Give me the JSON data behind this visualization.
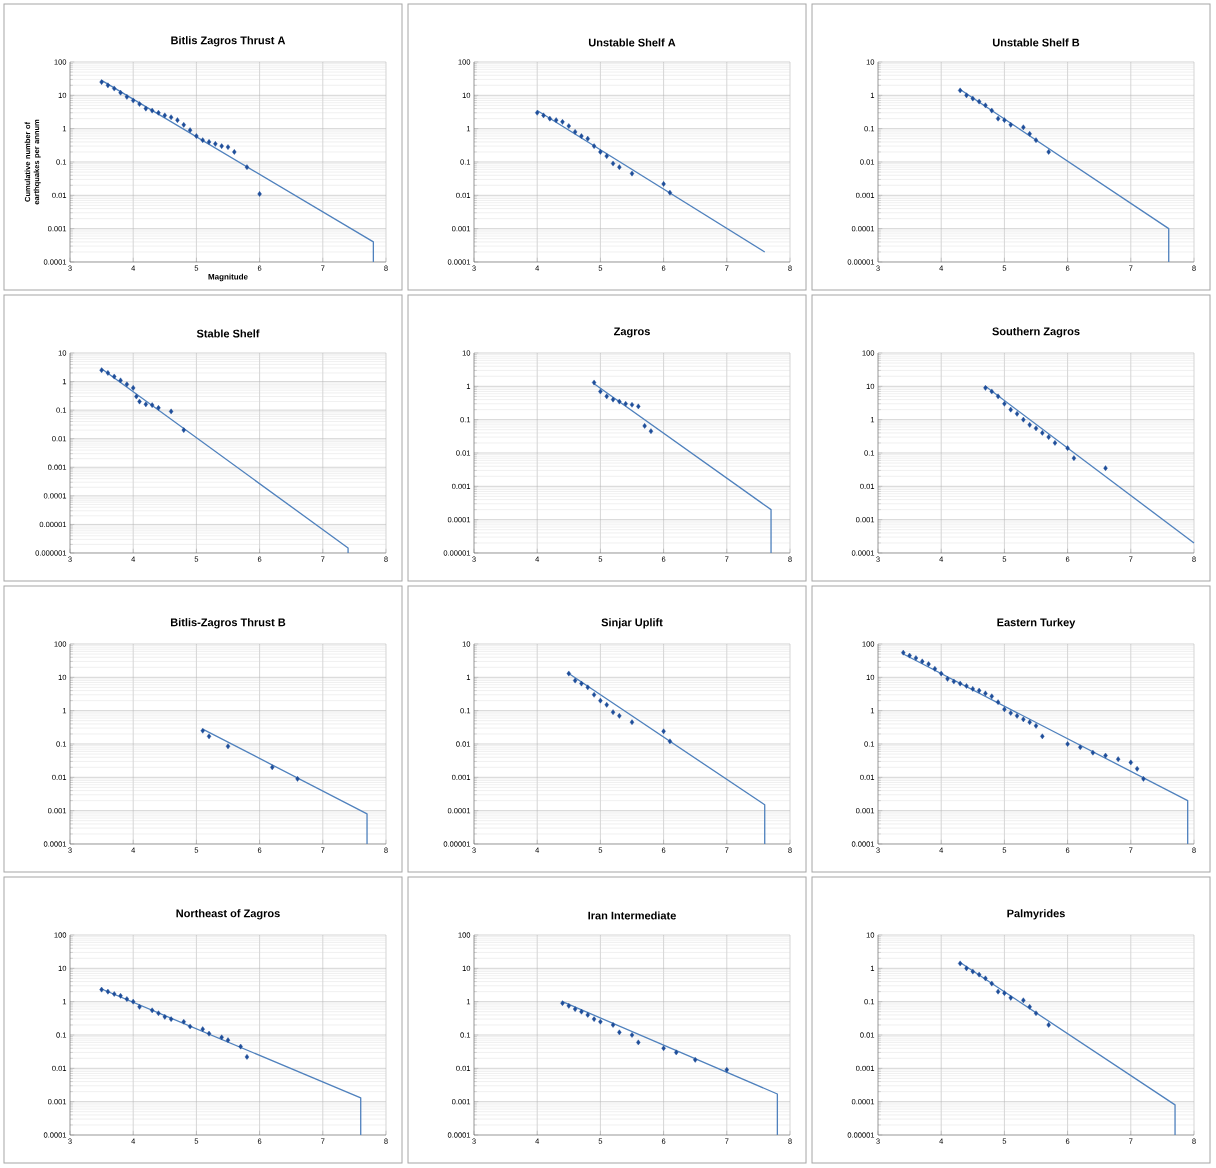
{
  "chart_data": [
    {
      "type": "scatter",
      "title": "Bitlis Zagros Thrust A",
      "xlabel": "Magnitude",
      "ylabel": "Cumulative number of earthquakes per annum",
      "log": "y",
      "grid": true,
      "xlim": [
        3,
        8
      ],
      "xticks": [
        3,
        4,
        5,
        6,
        7,
        8
      ],
      "ylim": [
        0.0001,
        100
      ],
      "yticks": [
        {
          "value": 0.0001,
          "label": "0.0001"
        },
        {
          "value": 0.001,
          "label": "0.001"
        },
        {
          "value": 0.01,
          "label": "0.01"
        },
        {
          "value": 0.1,
          "label": "0.1"
        },
        {
          "value": 1,
          "label": "1"
        },
        {
          "value": 10,
          "label": "10"
        },
        {
          "value": 100,
          "label": "100"
        }
      ],
      "series": [
        {
          "marker": "diamond",
          "color": "#1f4e9a",
          "x": [
            3.5,
            3.6,
            3.7,
            3.8,
            3.9,
            4.0,
            4.1,
            4.2,
            4.3,
            4.4,
            4.5,
            4.6,
            4.7,
            4.8,
            4.9,
            5.0,
            5.1,
            5.2,
            5.3,
            5.4,
            5.5,
            5.6,
            5.8,
            6.0
          ],
          "values": [
            25,
            20,
            16,
            12,
            9,
            7,
            5.5,
            4,
            3.5,
            3,
            2.5,
            2.2,
            1.8,
            1.3,
            0.9,
            0.6,
            0.45,
            0.4,
            0.35,
            0.3,
            0.28,
            0.2,
            0.07,
            0.011
          ]
        },
        {
          "type": "line",
          "color": "#4f81bd",
          "x": [
            3.5,
            7.8,
            7.8
          ],
          "values": [
            28,
            0.0004,
            0.0001
          ]
        }
      ]
    },
    {
      "type": "scatter",
      "title": "Unstable Shelf A",
      "log": "y",
      "grid": true,
      "xlim": [
        3,
        8
      ],
      "xticks": [
        3,
        4,
        5,
        6,
        7,
        8
      ],
      "ylim": [
        0.0001,
        100
      ],
      "yticks": [
        {
          "value": 0.0001,
          "label": "0.0001"
        },
        {
          "value": 0.001,
          "label": "0.001"
        },
        {
          "value": 0.01,
          "label": "0.01"
        },
        {
          "value": 0.1,
          "label": "0.1"
        },
        {
          "value": 1,
          "label": "1"
        },
        {
          "value": 10,
          "label": "10"
        },
        {
          "value": 100,
          "label": "100"
        }
      ],
      "series": [
        {
          "marker": "diamond",
          "color": "#1f4e9a",
          "x": [
            4.0,
            4.1,
            4.2,
            4.3,
            4.4,
            4.5,
            4.6,
            4.7,
            4.8,
            4.9,
            5.0,
            5.1,
            5.2,
            5.3,
            5.5,
            6.0,
            6.1
          ],
          "values": [
            3,
            2.5,
            2,
            1.8,
            1.6,
            1.2,
            0.8,
            0.6,
            0.5,
            0.3,
            0.2,
            0.15,
            0.09,
            0.07,
            0.045,
            0.022,
            0.012
          ]
        },
        {
          "type": "line",
          "color": "#4f81bd",
          "x": [
            4.0,
            7.6
          ],
          "values": [
            3.5,
            0.0002
          ]
        }
      ]
    },
    {
      "type": "scatter",
      "title": "Unstable Shelf B",
      "log": "y",
      "grid": true,
      "xlim": [
        3,
        8
      ],
      "xticks": [
        3,
        4,
        5,
        6,
        7,
        8
      ],
      "ylim": [
        1e-05,
        10
      ],
      "yticks": [
        {
          "value": 1e-05,
          "label": "0.00001"
        },
        {
          "value": 0.0001,
          "label": "0.0001"
        },
        {
          "value": 0.001,
          "label": "0.001"
        },
        {
          "value": 0.01,
          "label": "0.01"
        },
        {
          "value": 0.1,
          "label": "0.1"
        },
        {
          "value": 1,
          "label": "1"
        },
        {
          "value": 10,
          "label": "10"
        }
      ],
      "series": [
        {
          "marker": "diamond",
          "color": "#1f4e9a",
          "x": [
            4.3,
            4.4,
            4.5,
            4.6,
            4.7,
            4.8,
            4.9,
            5.0,
            5.1,
            5.3,
            5.4,
            5.5,
            5.7
          ],
          "values": [
            1.4,
            1.0,
            0.8,
            0.65,
            0.5,
            0.35,
            0.2,
            0.18,
            0.13,
            0.11,
            0.07,
            0.045,
            0.02
          ]
        },
        {
          "type": "line",
          "color": "#4f81bd",
          "x": [
            4.3,
            7.6,
            7.6
          ],
          "values": [
            1.5,
            0.0001,
            1e-05
          ]
        }
      ]
    },
    {
      "type": "scatter",
      "title": "Stable Shelf",
      "log": "y",
      "grid": true,
      "xlim": [
        3,
        8
      ],
      "xticks": [
        3,
        4,
        5,
        6,
        7,
        8
      ],
      "ylim": [
        1e-06,
        10
      ],
      "yticks": [
        {
          "value": 1e-06,
          "label": "0.000001"
        },
        {
          "value": 1e-05,
          "label": "0.00001"
        },
        {
          "value": 0.0001,
          "label": "0.0001"
        },
        {
          "value": 0.001,
          "label": "0.001"
        },
        {
          "value": 0.01,
          "label": "0.01"
        },
        {
          "value": 0.1,
          "label": "0.1"
        },
        {
          "value": 1,
          "label": "1"
        },
        {
          "value": 10,
          "label": "10"
        }
      ],
      "series": [
        {
          "marker": "diamond",
          "color": "#1f4e9a",
          "x": [
            3.5,
            3.6,
            3.7,
            3.8,
            3.9,
            4.0,
            4.05,
            4.1,
            4.2,
            4.3,
            4.4,
            4.6,
            4.8
          ],
          "values": [
            2.5,
            2.0,
            1.5,
            1.1,
            0.8,
            0.6,
            0.3,
            0.2,
            0.16,
            0.15,
            0.12,
            0.09,
            0.02
          ]
        },
        {
          "type": "line",
          "color": "#4f81bd",
          "x": [
            3.5,
            7.4,
            7.4
          ],
          "values": [
            2.8,
            1.5e-06,
            1e-06
          ]
        }
      ]
    },
    {
      "type": "scatter",
      "title": "Zagros",
      "log": "y",
      "grid": true,
      "xlim": [
        3,
        8
      ],
      "xticks": [
        3,
        4,
        5,
        6,
        7,
        8
      ],
      "ylim": [
        1e-05,
        10
      ],
      "yticks": [
        {
          "value": 1e-05,
          "label": "0.00001"
        },
        {
          "value": 0.0001,
          "label": "0.0001"
        },
        {
          "value": 0.001,
          "label": "0.001"
        },
        {
          "value": 0.01,
          "label": "0.01"
        },
        {
          "value": 0.1,
          "label": "0.1"
        },
        {
          "value": 1,
          "label": "1"
        },
        {
          "value": 10,
          "label": "10"
        }
      ],
      "series": [
        {
          "marker": "diamond",
          "color": "#1f4e9a",
          "x": [
            4.9,
            5.0,
            5.1,
            5.2,
            5.3,
            5.4,
            5.5,
            5.6,
            5.7,
            5.8
          ],
          "values": [
            1.3,
            0.7,
            0.5,
            0.4,
            0.35,
            0.3,
            0.28,
            0.25,
            0.065,
            0.045
          ]
        },
        {
          "type": "line",
          "color": "#4f81bd",
          "x": [
            4.9,
            7.7,
            7.7
          ],
          "values": [
            1.2,
            0.0002,
            1e-05
          ]
        }
      ]
    },
    {
      "type": "scatter",
      "title": "Southern Zagros",
      "log": "y",
      "grid": true,
      "xlim": [
        3,
        8
      ],
      "xticks": [
        3,
        4,
        5,
        6,
        7,
        8
      ],
      "ylim": [
        0.0001,
        100
      ],
      "yticks": [
        {
          "value": 0.0001,
          "label": "0.0001"
        },
        {
          "value": 0.001,
          "label": "0.001"
        },
        {
          "value": 0.01,
          "label": "0.01"
        },
        {
          "value": 0.1,
          "label": "0.1"
        },
        {
          "value": 1,
          "label": "1"
        },
        {
          "value": 10,
          "label": "10"
        },
        {
          "value": 100,
          "label": "100"
        }
      ],
      "series": [
        {
          "marker": "diamond",
          "color": "#1f4e9a",
          "x": [
            4.7,
            4.8,
            4.9,
            5.0,
            5.1,
            5.2,
            5.3,
            5.4,
            5.5,
            5.6,
            5.7,
            5.8,
            6.0,
            6.1,
            6.6
          ],
          "values": [
            9,
            7,
            5,
            3,
            2,
            1.5,
            1.0,
            0.7,
            0.55,
            0.4,
            0.3,
            0.2,
            0.14,
            0.07,
            0.035
          ]
        },
        {
          "type": "line",
          "color": "#4f81bd",
          "x": [
            4.7,
            8
          ],
          "values": [
            10,
            0.0002
          ]
        }
      ]
    },
    {
      "type": "scatter",
      "title": "Bitlis-Zagros Thrust B",
      "log": "y",
      "grid": true,
      "xlim": [
        3,
        8
      ],
      "xticks": [
        3,
        4,
        5,
        6,
        7,
        8
      ],
      "ylim": [
        0.0001,
        100
      ],
      "yticks": [
        {
          "value": 0.0001,
          "label": "0.0001"
        },
        {
          "value": 0.001,
          "label": "0.001"
        },
        {
          "value": 0.01,
          "label": "0.01"
        },
        {
          "value": 0.1,
          "label": "0.1"
        },
        {
          "value": 1,
          "label": "1"
        },
        {
          "value": 10,
          "label": "10"
        },
        {
          "value": 100,
          "label": "100"
        }
      ],
      "series": [
        {
          "marker": "diamond",
          "color": "#1f4e9a",
          "x": [
            5.1,
            5.2,
            5.5,
            6.2,
            6.6
          ],
          "values": [
            0.25,
            0.17,
            0.085,
            0.02,
            0.009
          ]
        },
        {
          "type": "line",
          "color": "#4f81bd",
          "x": [
            5.1,
            7.7,
            7.7
          ],
          "values": [
            0.28,
            0.0008,
            0.0001
          ]
        }
      ]
    },
    {
      "type": "scatter",
      "title": "Sinjar Uplift",
      "log": "y",
      "grid": true,
      "xlim": [
        3,
        8
      ],
      "xticks": [
        3,
        4,
        5,
        6,
        7,
        8
      ],
      "ylim": [
        1e-05,
        10
      ],
      "yticks": [
        {
          "value": 1e-05,
          "label": "0.00001"
        },
        {
          "value": 0.0001,
          "label": "0.0001"
        },
        {
          "value": 0.001,
          "label": "0.001"
        },
        {
          "value": 0.01,
          "label": "0.01"
        },
        {
          "value": 0.1,
          "label": "0.1"
        },
        {
          "value": 1,
          "label": "1"
        },
        {
          "value": 10,
          "label": "10"
        }
      ],
      "series": [
        {
          "marker": "diamond",
          "color": "#1f4e9a",
          "x": [
            4.5,
            4.6,
            4.7,
            4.8,
            4.9,
            5.0,
            5.1,
            5.2,
            5.3,
            5.5,
            6.0,
            6.1
          ],
          "values": [
            1.3,
            0.8,
            0.65,
            0.5,
            0.3,
            0.2,
            0.15,
            0.09,
            0.07,
            0.045,
            0.024,
            0.012
          ]
        },
        {
          "type": "line",
          "color": "#4f81bd",
          "x": [
            4.5,
            7.6,
            7.6
          ],
          "values": [
            1.3,
            0.00015,
            1e-05
          ]
        }
      ]
    },
    {
      "type": "scatter",
      "title": "Eastern Turkey",
      "log": "y",
      "grid": true,
      "xlim": [
        3,
        8
      ],
      "xticks": [
        3,
        4,
        5,
        6,
        7,
        8
      ],
      "ylim": [
        0.0001,
        100
      ],
      "yticks": [
        {
          "value": 0.0001,
          "label": "0.0001"
        },
        {
          "value": 0.001,
          "label": "0.001"
        },
        {
          "value": 0.01,
          "label": "0.01"
        },
        {
          "value": 0.1,
          "label": "0.1"
        },
        {
          "value": 1,
          "label": "1"
        },
        {
          "value": 10,
          "label": "10"
        },
        {
          "value": 100,
          "label": "100"
        }
      ],
      "series": [
        {
          "marker": "diamond",
          "color": "#1f4e9a",
          "x": [
            3.4,
            3.5,
            3.6,
            3.7,
            3.8,
            3.9,
            4.0,
            4.1,
            4.2,
            4.3,
            4.4,
            4.5,
            4.6,
            4.7,
            4.8,
            4.9,
            5.0,
            5.1,
            5.2,
            5.3,
            5.4,
            5.5,
            5.6,
            6.0,
            6.2,
            6.4,
            6.6,
            6.8,
            7.0,
            7.1,
            7.2
          ],
          "values": [
            55,
            45,
            38,
            30,
            25,
            18,
            13,
            9,
            7.5,
            6.5,
            5.5,
            4.5,
            4,
            3.3,
            2.7,
            1.8,
            1.1,
            0.85,
            0.7,
            0.55,
            0.45,
            0.35,
            0.17,
            0.1,
            0.08,
            0.055,
            0.045,
            0.035,
            0.028,
            0.018,
            0.009
          ]
        },
        {
          "type": "line",
          "color": "#4f81bd",
          "x": [
            3.4,
            7.9,
            7.9
          ],
          "values": [
            50,
            0.002,
            0.0001
          ]
        }
      ]
    },
    {
      "type": "scatter",
      "title": "Northeast of Zagros",
      "log": "y",
      "grid": true,
      "xlim": [
        3,
        8
      ],
      "xticks": [
        3,
        4,
        5,
        6,
        7,
        8
      ],
      "ylim": [
        0.0001,
        100
      ],
      "yticks": [
        {
          "value": 0.0001,
          "label": "0.0001"
        },
        {
          "value": 0.001,
          "label": "0.001"
        },
        {
          "value": 0.01,
          "label": "0.01"
        },
        {
          "value": 0.1,
          "label": "0.1"
        },
        {
          "value": 1,
          "label": "1"
        },
        {
          "value": 10,
          "label": "10"
        },
        {
          "value": 100,
          "label": "100"
        }
      ],
      "series": [
        {
          "marker": "diamond",
          "color": "#1f4e9a",
          "x": [
            3.5,
            3.6,
            3.7,
            3.8,
            3.9,
            4.0,
            4.1,
            4.3,
            4.4,
            4.5,
            4.6,
            4.8,
            4.9,
            5.1,
            5.2,
            5.4,
            5.5,
            5.7,
            5.8
          ],
          "values": [
            2.3,
            2.0,
            1.7,
            1.5,
            1.2,
            1.0,
            0.7,
            0.55,
            0.45,
            0.35,
            0.3,
            0.25,
            0.18,
            0.15,
            0.11,
            0.085,
            0.07,
            0.045,
            0.022
          ]
        },
        {
          "type": "line",
          "color": "#4f81bd",
          "x": [
            3.5,
            7.6,
            7.6
          ],
          "values": [
            2.4,
            0.0013,
            0.0001
          ]
        }
      ]
    },
    {
      "type": "scatter",
      "title": "Iran Intermediate",
      "log": "y",
      "grid": true,
      "xlim": [
        3,
        8
      ],
      "xticks": [
        3,
        4,
        5,
        6,
        7,
        8
      ],
      "ylim": [
        0.0001,
        100
      ],
      "yticks": [
        {
          "value": 0.0001,
          "label": "0.0001"
        },
        {
          "value": 0.001,
          "label": "0.001"
        },
        {
          "value": 0.01,
          "label": "0.01"
        },
        {
          "value": 0.1,
          "label": "0.1"
        },
        {
          "value": 1,
          "label": "1"
        },
        {
          "value": 10,
          "label": "10"
        },
        {
          "value": 100,
          "label": "100"
        }
      ],
      "series": [
        {
          "marker": "diamond",
          "color": "#1f4e9a",
          "x": [
            4.4,
            4.5,
            4.6,
            4.7,
            4.8,
            4.9,
            5.0,
            5.2,
            5.3,
            5.5,
            5.6,
            6.0,
            6.2,
            6.5,
            7.0
          ],
          "values": [
            0.9,
            0.75,
            0.6,
            0.5,
            0.4,
            0.3,
            0.25,
            0.2,
            0.12,
            0.1,
            0.06,
            0.04,
            0.03,
            0.018,
            0.009
          ]
        },
        {
          "type": "line",
          "color": "#4f81bd",
          "x": [
            4.4,
            7.8,
            7.8
          ],
          "values": [
            1.0,
            0.0017,
            0.0001
          ]
        }
      ]
    },
    {
      "type": "scatter",
      "title": "Palmyrides",
      "log": "y",
      "grid": true,
      "xlim": [
        3,
        8
      ],
      "xticks": [
        3,
        4,
        5,
        6,
        7,
        8
      ],
      "ylim": [
        1e-05,
        10
      ],
      "yticks": [
        {
          "value": 1e-05,
          "label": "0.00001"
        },
        {
          "value": 0.0001,
          "label": "0.0001"
        },
        {
          "value": 0.001,
          "label": "0.001"
        },
        {
          "value": 0.01,
          "label": "0.01"
        },
        {
          "value": 0.1,
          "label": "0.1"
        },
        {
          "value": 1,
          "label": "1"
        },
        {
          "value": 10,
          "label": "10"
        }
      ],
      "series": [
        {
          "marker": "diamond",
          "color": "#1f4e9a",
          "x": [
            4.3,
            4.4,
            4.5,
            4.6,
            4.7,
            4.8,
            4.9,
            5.0,
            5.1,
            5.3,
            5.4,
            5.5,
            5.7
          ],
          "values": [
            1.4,
            1.0,
            0.8,
            0.65,
            0.5,
            0.35,
            0.2,
            0.18,
            0.13,
            0.11,
            0.07,
            0.045,
            0.02
          ]
        },
        {
          "type": "line",
          "color": "#4f81bd",
          "x": [
            4.3,
            7.7,
            7.7
          ],
          "values": [
            1.5,
            8e-05,
            1e-05
          ]
        }
      ]
    }
  ]
}
